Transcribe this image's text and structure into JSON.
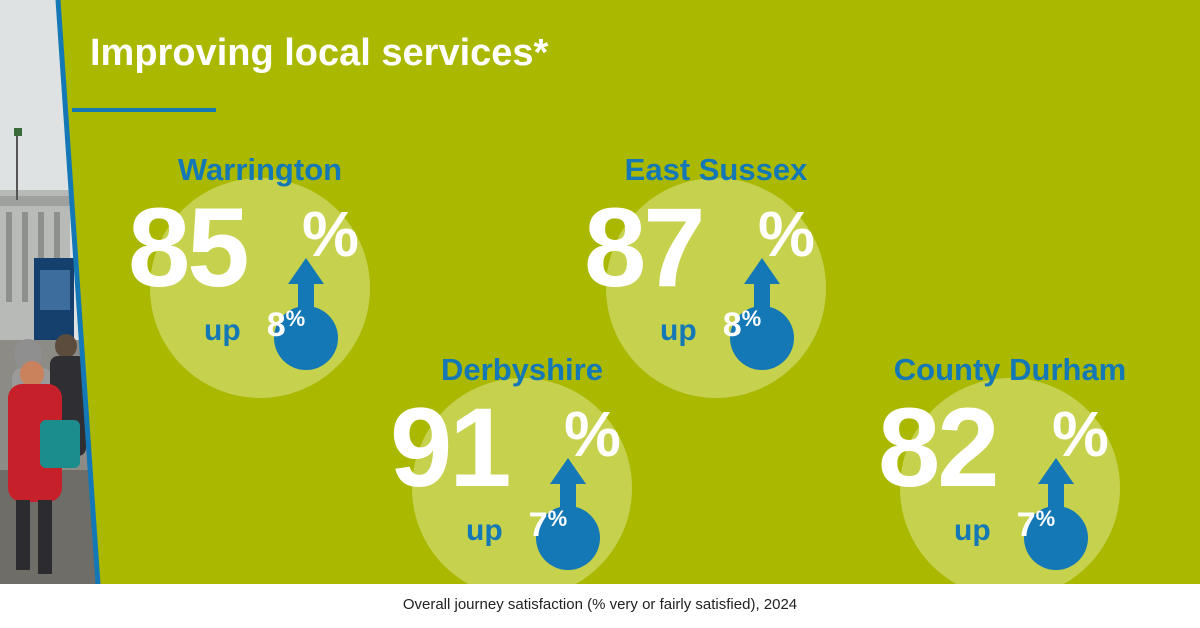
{
  "title": "Improving local services*",
  "up_word": "up",
  "percent_sign": "%",
  "regions": [
    {
      "name": "Warrington",
      "value": "85",
      "change": "8"
    },
    {
      "name": "East Sussex",
      "value": "87",
      "change": "8"
    },
    {
      "name": "Derbyshire",
      "value": "91",
      "change": "7"
    },
    {
      "name": "County Durham",
      "value": "82",
      "change": "7"
    }
  ],
  "caption": "Overall journey satisfaction (% very or fairly satisfied), 2024",
  "colors": {
    "background": "#aab800",
    "accent": "#1478b6",
    "text": "#ffffff"
  },
  "photo": "street-scene-bus-stop-pedestrians"
}
